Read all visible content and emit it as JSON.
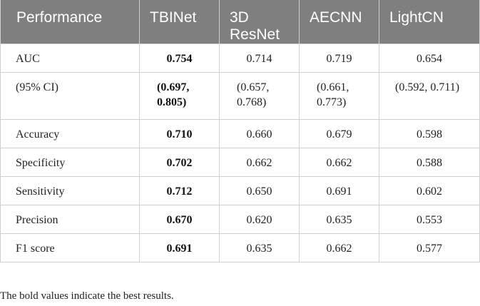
{
  "table": {
    "headers": [
      "Performance",
      "TBINet",
      "3D ResNet",
      "AECNN",
      "LightCN"
    ],
    "rows": [
      {
        "label": "AUC",
        "values": [
          "0.754",
          "0.714",
          "0.719",
          "0.654"
        ]
      },
      {
        "label": "(95% CI)",
        "values": [
          "(0.697, 0.805)",
          "(0.657, 0.768)",
          "(0.661, 0.773)",
          "(0.592, 0.711)"
        ]
      },
      {
        "label": "Accuracy",
        "values": [
          "0.710",
          "0.660",
          "0.679",
          "0.598"
        ]
      },
      {
        "label": "Specificity",
        "values": [
          "0.702",
          "0.662",
          "0.662",
          "0.588"
        ]
      },
      {
        "label": "Sensitivity",
        "values": [
          "0.712",
          "0.650",
          "0.691",
          "0.602"
        ]
      },
      {
        "label": "Precision",
        "values": [
          "0.670",
          "0.620",
          "0.635",
          "0.553"
        ]
      },
      {
        "label": "F1 score",
        "values": [
          "0.691",
          "0.635",
          "0.662",
          "0.577"
        ]
      }
    ],
    "best_column": "TBINet",
    "header_color": "#7f7f7f"
  },
  "footnote": "The bold values indicate the best results."
}
